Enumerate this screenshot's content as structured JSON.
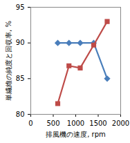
{
  "chart_data": {
    "type": "line",
    "x_label": "排風機の速度, rpm",
    "y_label": "単繊維の純度と回収率, %",
    "x": [
      600,
      850,
      1100,
      1400,
      1700
    ],
    "series": [
      {
        "color": "#4a7ebb",
        "marker": "diamond",
        "values": [
          90,
          90,
          90,
          90,
          85
        ]
      },
      {
        "color": "#be4b48",
        "marker": "square",
        "values": [
          81.5,
          86.8,
          86.5,
          89.7,
          93
        ]
      }
    ],
    "xlim": [
      0,
      2000
    ],
    "xticks": [
      0,
      500,
      1000,
      1500,
      2000
    ],
    "ylim": [
      80,
      95
    ],
    "yticks": [
      80,
      85,
      90,
      95
    ],
    "grid": false
  }
}
